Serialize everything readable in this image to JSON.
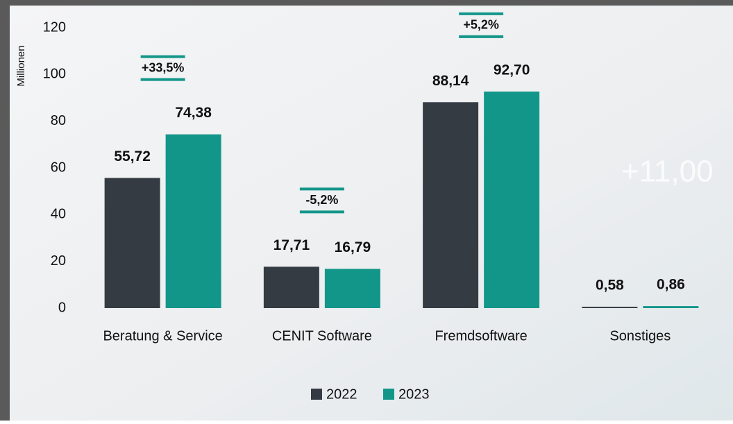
{
  "chart_data": {
    "type": "bar",
    "y_label": "Millionen",
    "categories": [
      "Beratung & Service",
      "CENIT Software",
      "Fremdsoftware",
      "Sonstiges"
    ],
    "series": [
      {
        "name": "2022",
        "color": "#343b43",
        "values": [
          55.72,
          17.71,
          88.14,
          0.58
        ],
        "value_labels": [
          "55,72",
          "17,71",
          "88,14",
          "0,58"
        ]
      },
      {
        "name": "2023",
        "color": "#13968a",
        "values": [
          74.38,
          16.79,
          92.7,
          0.86
        ],
        "value_labels": [
          "74,38",
          "16,79",
          "92,70",
          "0,86"
        ]
      }
    ],
    "changes": [
      "+33,5%",
      "-5,2%",
      "+5,2%",
      null
    ],
    "background_text": "+11,00",
    "ylim": [
      0,
      120
    ],
    "yticks": [
      0,
      20,
      40,
      60,
      80,
      100,
      120
    ],
    "grid": false,
    "legend": "bottom"
  }
}
